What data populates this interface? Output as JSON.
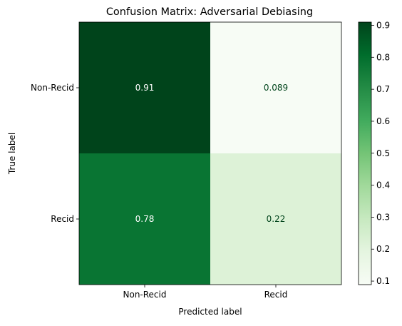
{
  "chart_data": {
    "type": "heatmap",
    "title": "Confusion Matrix: Adversarial Debiasing",
    "xlabel": "Predicted label",
    "ylabel": "True label",
    "x_categories": [
      "Non-Recid",
      "Recid"
    ],
    "y_categories": [
      "Non-Recid",
      "Recid"
    ],
    "values": [
      [
        0.91,
        0.089
      ],
      [
        0.78,
        0.22
      ]
    ],
    "cell_labels": [
      [
        "0.91",
        "0.089"
      ],
      [
        "0.78",
        "0.22"
      ]
    ],
    "colormap": "Greens",
    "colorbar": {
      "range": [
        0.089,
        0.91
      ],
      "ticks": [
        0.1,
        0.2,
        0.3,
        0.4,
        0.5,
        0.6,
        0.7,
        0.8,
        0.9
      ],
      "tick_labels": [
        "0.1",
        "0.2",
        "0.3",
        "0.4",
        "0.5",
        "0.6",
        "0.7",
        "0.8",
        "0.9"
      ]
    },
    "grid": false
  }
}
